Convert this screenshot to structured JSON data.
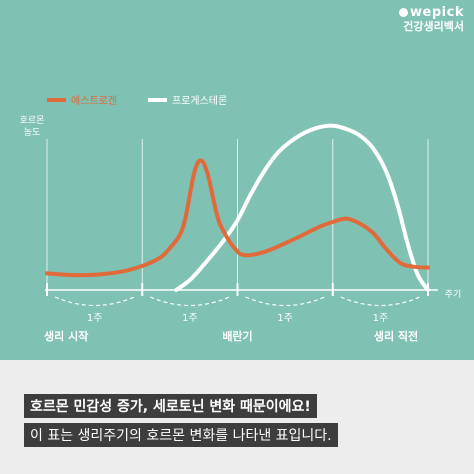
{
  "brand": {
    "logo": "wepick",
    "sub": "건강생리백서"
  },
  "colors": {
    "background": "#7fc1b3",
    "estrogen": "#e06a3a",
    "progesterone": "#ffffff",
    "axis": "#ffffff",
    "caption_bg": "#3d3d3d"
  },
  "chart_data": {
    "type": "line",
    "title": "",
    "ylabel": "호르몬 농도",
    "xlabel": "주기",
    "legend_position": "top-left",
    "grid": true,
    "x_range": [
      0,
      28
    ],
    "y_range": [
      0,
      100
    ],
    "week_label": "1주",
    "week_labels": [
      "1주",
      "1주",
      "1주",
      "1주"
    ],
    "phase_labels": [
      {
        "x": 0,
        "label": "생리 시작"
      },
      {
        "x": 14,
        "label": "배란기"
      },
      {
        "x": 28,
        "label": "생리 직전"
      }
    ],
    "series": [
      {
        "name": "에스트로겐",
        "points": [
          [
            0,
            10
          ],
          [
            2,
            9
          ],
          [
            4,
            9.5
          ],
          [
            6,
            12
          ],
          [
            8,
            18
          ],
          [
            9,
            25
          ],
          [
            10,
            38
          ],
          [
            10.8,
            70
          ],
          [
            11.3,
            78
          ],
          [
            11.8,
            70
          ],
          [
            12.5,
            45
          ],
          [
            13,
            35
          ],
          [
            13.8,
            25
          ],
          [
            14.5,
            21
          ],
          [
            16,
            23
          ],
          [
            18,
            30
          ],
          [
            20,
            38
          ],
          [
            21,
            41
          ],
          [
            22,
            43
          ],
          [
            23,
            40
          ],
          [
            24,
            34
          ],
          [
            25,
            24
          ],
          [
            26,
            16
          ],
          [
            27,
            14
          ],
          [
            28,
            13.5
          ]
        ]
      },
      {
        "name": "프로게스테론",
        "points": [
          [
            9.5,
            0
          ],
          [
            10.5,
            6
          ],
          [
            11.5,
            15
          ],
          [
            13,
            30
          ],
          [
            14,
            42
          ],
          [
            15,
            58
          ],
          [
            16,
            72
          ],
          [
            17,
            83
          ],
          [
            18,
            90
          ],
          [
            19,
            95
          ],
          [
            20,
            98
          ],
          [
            21,
            99
          ],
          [
            22,
            97
          ],
          [
            23,
            93
          ],
          [
            24,
            85
          ],
          [
            25,
            70
          ],
          [
            25.8,
            50
          ],
          [
            26.5,
            28
          ],
          [
            27.2,
            10
          ],
          [
            27.8,
            2
          ],
          [
            28,
            0
          ]
        ]
      }
    ]
  },
  "caption": {
    "line1": "호르몬 민감성 증가, 세로토닌 변화 때문이에요!",
    "line2": "이 표는 생리주기의 호르몬 변화를 나타낸 표입니다."
  }
}
